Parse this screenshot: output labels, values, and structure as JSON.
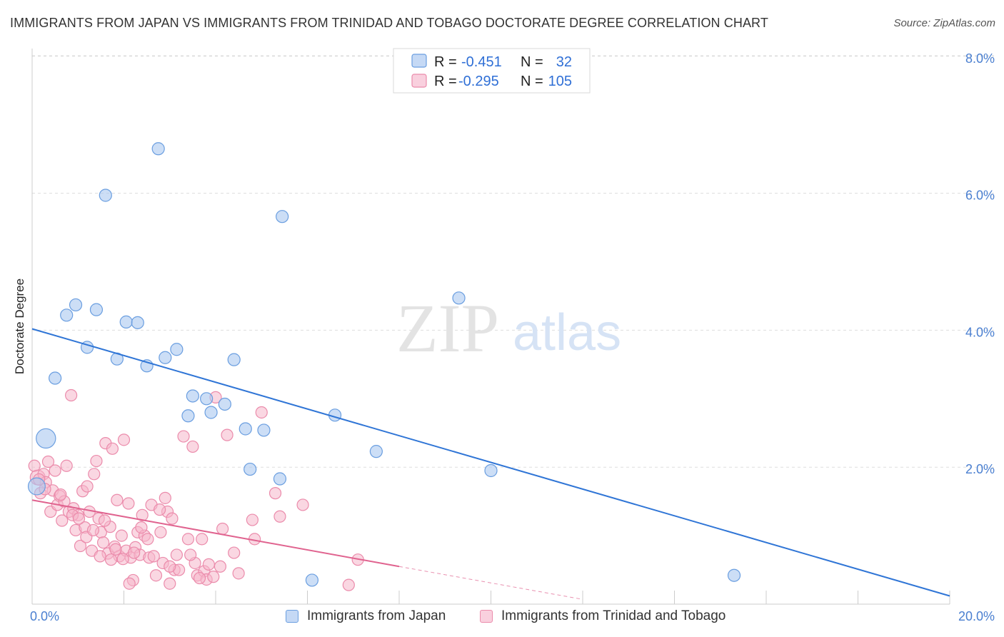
{
  "title": "IMMIGRANTS FROM JAPAN VS IMMIGRANTS FROM TRINIDAD AND TOBAGO DOCTORATE DEGREE CORRELATION CHART",
  "source": "Source: ZipAtlas.com",
  "watermark": {
    "zip": "ZIP",
    "atlas": "atlas"
  },
  "colors": {
    "japan_fill": "#aac8f0",
    "japan_stroke": "#6a9ee0",
    "japan_line": "#2f75d6",
    "tt_fill": "#f6b7cb",
    "tt_stroke": "#eb8bab",
    "tt_line": "#e0638f",
    "tick": "#4a7fd0",
    "grid": "#dddddd"
  },
  "legend": {
    "japan": {
      "r_label": "R =",
      "r_value": "-0.451",
      "n_label": "N =",
      "n_value": "32"
    },
    "tt": {
      "r_label": "R =",
      "r_value": "-0.295",
      "n_label": "N =",
      "n_value": "105"
    }
  },
  "bottom_legend": {
    "japan": "Immigrants from Japan",
    "tt": "Immigrants from Trinidad and Tobago"
  },
  "chart_data": {
    "type": "scatter",
    "title": "IMMIGRANTS FROM JAPAN VS IMMIGRANTS FROM TRINIDAD AND TOBAGO DOCTORATE DEGREE CORRELATION CHART",
    "xlabel": "",
    "ylabel": "Doctorate Degree",
    "xlim": [
      0,
      20
    ],
    "ylim": [
      0,
      8.2
    ],
    "x_tick_labels": [
      "0.0%",
      "20.0%"
    ],
    "x_tick_values": [
      0,
      20
    ],
    "y_tick_labels": [
      "2.0%",
      "4.0%",
      "6.0%",
      "8.0%"
    ],
    "y_tick_values": [
      2,
      4,
      6,
      8
    ],
    "grid": true,
    "series": [
      {
        "name": "Immigrants from Japan",
        "trend": {
          "x": [
            0,
            20
          ],
          "y": [
            4.02,
            0.12
          ]
        },
        "points": [
          {
            "x": 0.3,
            "y": 2.42,
            "s": 1.6
          },
          {
            "x": 0.5,
            "y": 3.3,
            "s": 1
          },
          {
            "x": 0.75,
            "y": 4.22,
            "s": 1
          },
          {
            "x": 0.95,
            "y": 4.37,
            "s": 1
          },
          {
            "x": 1.2,
            "y": 3.75,
            "s": 1
          },
          {
            "x": 1.4,
            "y": 4.3,
            "s": 1
          },
          {
            "x": 1.6,
            "y": 5.97,
            "s": 1
          },
          {
            "x": 1.85,
            "y": 3.58,
            "s": 1
          },
          {
            "x": 2.05,
            "y": 4.12,
            "s": 1
          },
          {
            "x": 2.3,
            "y": 4.11,
            "s": 1
          },
          {
            "x": 2.5,
            "y": 3.48,
            "s": 1
          },
          {
            "x": 2.75,
            "y": 6.65,
            "s": 1
          },
          {
            "x": 2.9,
            "y": 3.6,
            "s": 1
          },
          {
            "x": 3.15,
            "y": 3.72,
            "s": 1
          },
          {
            "x": 3.4,
            "y": 2.75,
            "s": 1
          },
          {
            "x": 3.5,
            "y": 3.04,
            "s": 1
          },
          {
            "x": 3.8,
            "y": 3.0,
            "s": 1
          },
          {
            "x": 3.9,
            "y": 2.8,
            "s": 1
          },
          {
            "x": 4.2,
            "y": 2.92,
            "s": 1
          },
          {
            "x": 4.4,
            "y": 3.57,
            "s": 1
          },
          {
            "x": 4.65,
            "y": 2.56,
            "s": 1
          },
          {
            "x": 4.75,
            "y": 1.97,
            "s": 1
          },
          {
            "x": 5.05,
            "y": 2.54,
            "s": 1
          },
          {
            "x": 5.4,
            "y": 1.83,
            "s": 1
          },
          {
            "x": 5.45,
            "y": 5.66,
            "s": 1
          },
          {
            "x": 6.1,
            "y": 0.35,
            "s": 1
          },
          {
            "x": 6.6,
            "y": 2.76,
            "s": 1
          },
          {
            "x": 7.5,
            "y": 2.23,
            "s": 1
          },
          {
            "x": 9.3,
            "y": 4.47,
            "s": 1
          },
          {
            "x": 10.0,
            "y": 1.95,
            "s": 1
          },
          {
            "x": 15.3,
            "y": 0.42,
            "s": 1
          },
          {
            "x": 0.1,
            "y": 1.72,
            "s": 1.4
          }
        ]
      },
      {
        "name": "Immigrants from Trinidad and Tobago",
        "trend": {
          "x": [
            0,
            8.0
          ],
          "y": [
            1.52,
            0.55
          ]
        },
        "trend_dashed": {
          "x": [
            8.0,
            12.0
          ],
          "y": [
            0.55,
            0.07
          ]
        },
        "points": [
          {
            "x": 0.05,
            "y": 2.02,
            "s": 1
          },
          {
            "x": 0.12,
            "y": 1.85,
            "s": 1.3
          },
          {
            "x": 0.18,
            "y": 1.62,
            "s": 1
          },
          {
            "x": 0.25,
            "y": 1.9,
            "s": 1
          },
          {
            "x": 0.3,
            "y": 1.78,
            "s": 1
          },
          {
            "x": 0.35,
            "y": 2.08,
            "s": 1
          },
          {
            "x": 0.4,
            "y": 1.35,
            "s": 1
          },
          {
            "x": 0.45,
            "y": 1.66,
            "s": 1
          },
          {
            "x": 0.5,
            "y": 1.95,
            "s": 1
          },
          {
            "x": 0.55,
            "y": 1.45,
            "s": 1
          },
          {
            "x": 0.6,
            "y": 1.58,
            "s": 1
          },
          {
            "x": 0.65,
            "y": 1.22,
            "s": 1
          },
          {
            "x": 0.7,
            "y": 1.5,
            "s": 1
          },
          {
            "x": 0.75,
            "y": 2.02,
            "s": 1
          },
          {
            "x": 0.8,
            "y": 1.35,
            "s": 1
          },
          {
            "x": 0.85,
            "y": 3.05,
            "s": 1
          },
          {
            "x": 0.9,
            "y": 1.4,
            "s": 1
          },
          {
            "x": 0.95,
            "y": 1.08,
            "s": 1
          },
          {
            "x": 1.0,
            "y": 1.3,
            "s": 1
          },
          {
            "x": 1.05,
            "y": 0.85,
            "s": 1
          },
          {
            "x": 1.1,
            "y": 1.65,
            "s": 1
          },
          {
            "x": 1.15,
            "y": 1.12,
            "s": 1
          },
          {
            "x": 1.2,
            "y": 1.72,
            "s": 1
          },
          {
            "x": 1.25,
            "y": 1.35,
            "s": 1
          },
          {
            "x": 1.3,
            "y": 0.78,
            "s": 1
          },
          {
            "x": 1.35,
            "y": 1.9,
            "s": 1
          },
          {
            "x": 1.4,
            "y": 2.09,
            "s": 1
          },
          {
            "x": 1.45,
            "y": 1.25,
            "s": 1
          },
          {
            "x": 1.5,
            "y": 1.05,
            "s": 1
          },
          {
            "x": 1.55,
            "y": 0.9,
            "s": 1
          },
          {
            "x": 1.6,
            "y": 2.35,
            "s": 1
          },
          {
            "x": 1.65,
            "y": 0.74,
            "s": 1
          },
          {
            "x": 1.7,
            "y": 1.13,
            "s": 1
          },
          {
            "x": 1.75,
            "y": 2.27,
            "s": 1
          },
          {
            "x": 1.8,
            "y": 0.84,
            "s": 1
          },
          {
            "x": 1.85,
            "y": 1.52,
            "s": 1
          },
          {
            "x": 1.9,
            "y": 0.7,
            "s": 1
          },
          {
            "x": 1.95,
            "y": 1.0,
            "s": 1
          },
          {
            "x": 2.0,
            "y": 2.4,
            "s": 1
          },
          {
            "x": 2.05,
            "y": 0.78,
            "s": 1
          },
          {
            "x": 2.1,
            "y": 1.47,
            "s": 1
          },
          {
            "x": 2.15,
            "y": 0.68,
            "s": 1
          },
          {
            "x": 2.2,
            "y": 0.35,
            "s": 1
          },
          {
            "x": 2.25,
            "y": 0.83,
            "s": 1
          },
          {
            "x": 2.3,
            "y": 1.05,
            "s": 1
          },
          {
            "x": 2.35,
            "y": 0.72,
            "s": 1
          },
          {
            "x": 2.4,
            "y": 1.3,
            "s": 1
          },
          {
            "x": 2.45,
            "y": 1.0,
            "s": 1
          },
          {
            "x": 2.55,
            "y": 0.68,
            "s": 1
          },
          {
            "x": 2.6,
            "y": 1.45,
            "s": 1
          },
          {
            "x": 2.7,
            "y": 0.42,
            "s": 1
          },
          {
            "x": 2.8,
            "y": 1.05,
            "s": 1
          },
          {
            "x": 2.85,
            "y": 0.6,
            "s": 1
          },
          {
            "x": 2.9,
            "y": 1.55,
            "s": 1
          },
          {
            "x": 2.95,
            "y": 1.35,
            "s": 1
          },
          {
            "x": 3.0,
            "y": 0.3,
            "s": 1
          },
          {
            "x": 3.05,
            "y": 1.25,
            "s": 1
          },
          {
            "x": 3.1,
            "y": 0.5,
            "s": 1
          },
          {
            "x": 3.15,
            "y": 0.72,
            "s": 1
          },
          {
            "x": 3.2,
            "y": 0.5,
            "s": 1
          },
          {
            "x": 3.3,
            "y": 2.45,
            "s": 1
          },
          {
            "x": 3.4,
            "y": 0.95,
            "s": 1
          },
          {
            "x": 3.5,
            "y": 2.3,
            "s": 1
          },
          {
            "x": 3.55,
            "y": 0.6,
            "s": 1
          },
          {
            "x": 3.6,
            "y": 0.42,
            "s": 1
          },
          {
            "x": 3.7,
            "y": 0.95,
            "s": 1
          },
          {
            "x": 3.75,
            "y": 0.48,
            "s": 1
          },
          {
            "x": 3.8,
            "y": 0.36,
            "s": 1
          },
          {
            "x": 3.85,
            "y": 0.58,
            "s": 1
          },
          {
            "x": 3.95,
            "y": 0.4,
            "s": 1
          },
          {
            "x": 4.0,
            "y": 3.02,
            "s": 1
          },
          {
            "x": 4.1,
            "y": 0.55,
            "s": 1
          },
          {
            "x": 4.15,
            "y": 1.1,
            "s": 1
          },
          {
            "x": 4.25,
            "y": 2.47,
            "s": 1
          },
          {
            "x": 4.4,
            "y": 0.75,
            "s": 1
          },
          {
            "x": 4.5,
            "y": 0.45,
            "s": 1
          },
          {
            "x": 4.8,
            "y": 1.23,
            "s": 1
          },
          {
            "x": 4.85,
            "y": 0.95,
            "s": 1
          },
          {
            "x": 5.0,
            "y": 2.8,
            "s": 1
          },
          {
            "x": 5.3,
            "y": 1.62,
            "s": 1
          },
          {
            "x": 5.4,
            "y": 1.28,
            "s": 1
          },
          {
            "x": 5.9,
            "y": 1.45,
            "s": 1
          },
          {
            "x": 6.9,
            "y": 0.28,
            "s": 1
          },
          {
            "x": 7.1,
            "y": 0.65,
            "s": 1
          },
          {
            "x": 0.15,
            "y": 1.82,
            "s": 1
          },
          {
            "x": 0.28,
            "y": 1.68,
            "s": 1
          },
          {
            "x": 0.62,
            "y": 1.6,
            "s": 1
          },
          {
            "x": 0.88,
            "y": 1.3,
            "s": 1
          },
          {
            "x": 1.02,
            "y": 1.25,
            "s": 1
          },
          {
            "x": 1.18,
            "y": 0.98,
            "s": 1
          },
          {
            "x": 1.33,
            "y": 1.08,
            "s": 1
          },
          {
            "x": 1.48,
            "y": 0.7,
            "s": 1
          },
          {
            "x": 1.58,
            "y": 1.22,
            "s": 1
          },
          {
            "x": 1.72,
            "y": 0.65,
            "s": 1
          },
          {
            "x": 1.82,
            "y": 0.8,
            "s": 1
          },
          {
            "x": 1.98,
            "y": 0.66,
            "s": 1
          },
          {
            "x": 2.12,
            "y": 0.3,
            "s": 1
          },
          {
            "x": 2.22,
            "y": 0.75,
            "s": 1
          },
          {
            "x": 2.38,
            "y": 1.12,
            "s": 1
          },
          {
            "x": 2.52,
            "y": 0.95,
            "s": 1
          },
          {
            "x": 2.65,
            "y": 0.7,
            "s": 1
          },
          {
            "x": 2.78,
            "y": 1.38,
            "s": 1
          },
          {
            "x": 3.0,
            "y": 0.55,
            "s": 1
          },
          {
            "x": 3.45,
            "y": 0.72,
            "s": 1
          },
          {
            "x": 3.65,
            "y": 0.38,
            "s": 1
          }
        ]
      }
    ]
  }
}
